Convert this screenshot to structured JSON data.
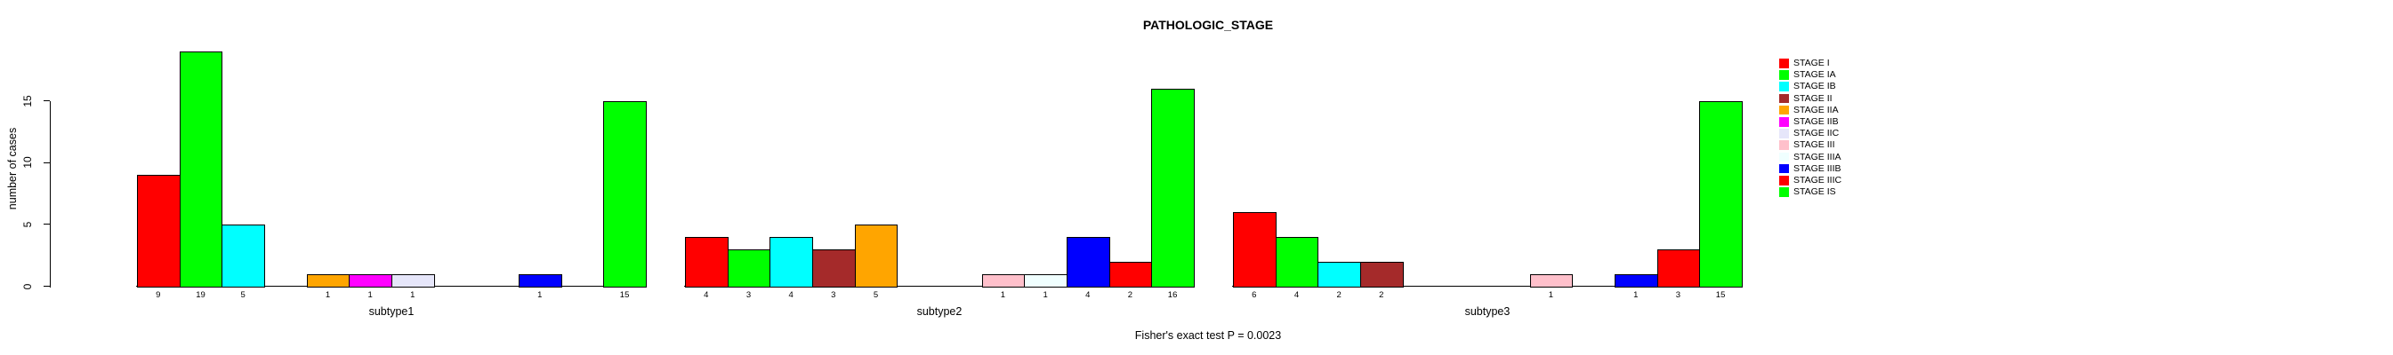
{
  "title": "PATHOLOGIC_STAGE",
  "footer_annotation": "Fisher's exact test P = 0.0023",
  "y_axis": {
    "label": "number of cases",
    "ticks": [
      0,
      5,
      10,
      15
    ]
  },
  "legend": {
    "position": "right",
    "items": [
      {
        "label": "STAGE I",
        "color": "#FF0000"
      },
      {
        "label": "STAGE IA",
        "color": "#00FF00"
      },
      {
        "label": "STAGE IB",
        "color": "#00FFFF"
      },
      {
        "label": "STAGE II",
        "color": "#A52A2A"
      },
      {
        "label": "STAGE IIA",
        "color": "#FFA500"
      },
      {
        "label": "STAGE IIB",
        "color": "#FF00FF"
      },
      {
        "label": "STAGE IIC",
        "color": "#E6E6FA"
      },
      {
        "label": "STAGE III",
        "color": "#FFC0CB"
      },
      {
        "label": "STAGE IIIA",
        "color": "#F0FFFF"
      },
      {
        "label": "STAGE IIIB",
        "color": "#0000FF"
      },
      {
        "label": "STAGE IIIC",
        "color": "#FF0000"
      },
      {
        "label": "STAGE IS",
        "color": "#00FF00"
      }
    ]
  },
  "chart_data": {
    "type": "bar",
    "title": "PATHOLOGIC_STAGE",
    "xlabel": "",
    "ylabel": "number of cases",
    "ylim": [
      0,
      19
    ],
    "yticks": [
      0,
      5,
      10,
      15
    ],
    "grid": false,
    "legend_position": "right",
    "annotation": "Fisher's exact test P = 0.0023",
    "stages": [
      "STAGE I",
      "STAGE IA",
      "STAGE IB",
      "STAGE II",
      "STAGE IIA",
      "STAGE IIB",
      "STAGE IIC",
      "STAGE III",
      "STAGE IIIA",
      "STAGE IIIB",
      "STAGE IIIC",
      "STAGE IS"
    ],
    "stage_colors": [
      "#FF0000",
      "#00FF00",
      "#00FFFF",
      "#A52A2A",
      "#FFA500",
      "#FF00FF",
      "#E6E6FA",
      "#FFC0CB",
      "#F0FFFF",
      "#0000FF",
      "#FF0000",
      "#00FF00"
    ],
    "groups": [
      {
        "label": "subtype1",
        "values": [
          9,
          19,
          5,
          0,
          1,
          1,
          1,
          0,
          0,
          1,
          0,
          15
        ]
      },
      {
        "label": "subtype2",
        "values": [
          4,
          3,
          4,
          3,
          5,
          0,
          0,
          1,
          1,
          4,
          2,
          16
        ]
      },
      {
        "label": "subtype3",
        "values": [
          6,
          4,
          2,
          2,
          0,
          0,
          0,
          1,
          0,
          1,
          3,
          15
        ]
      }
    ]
  }
}
